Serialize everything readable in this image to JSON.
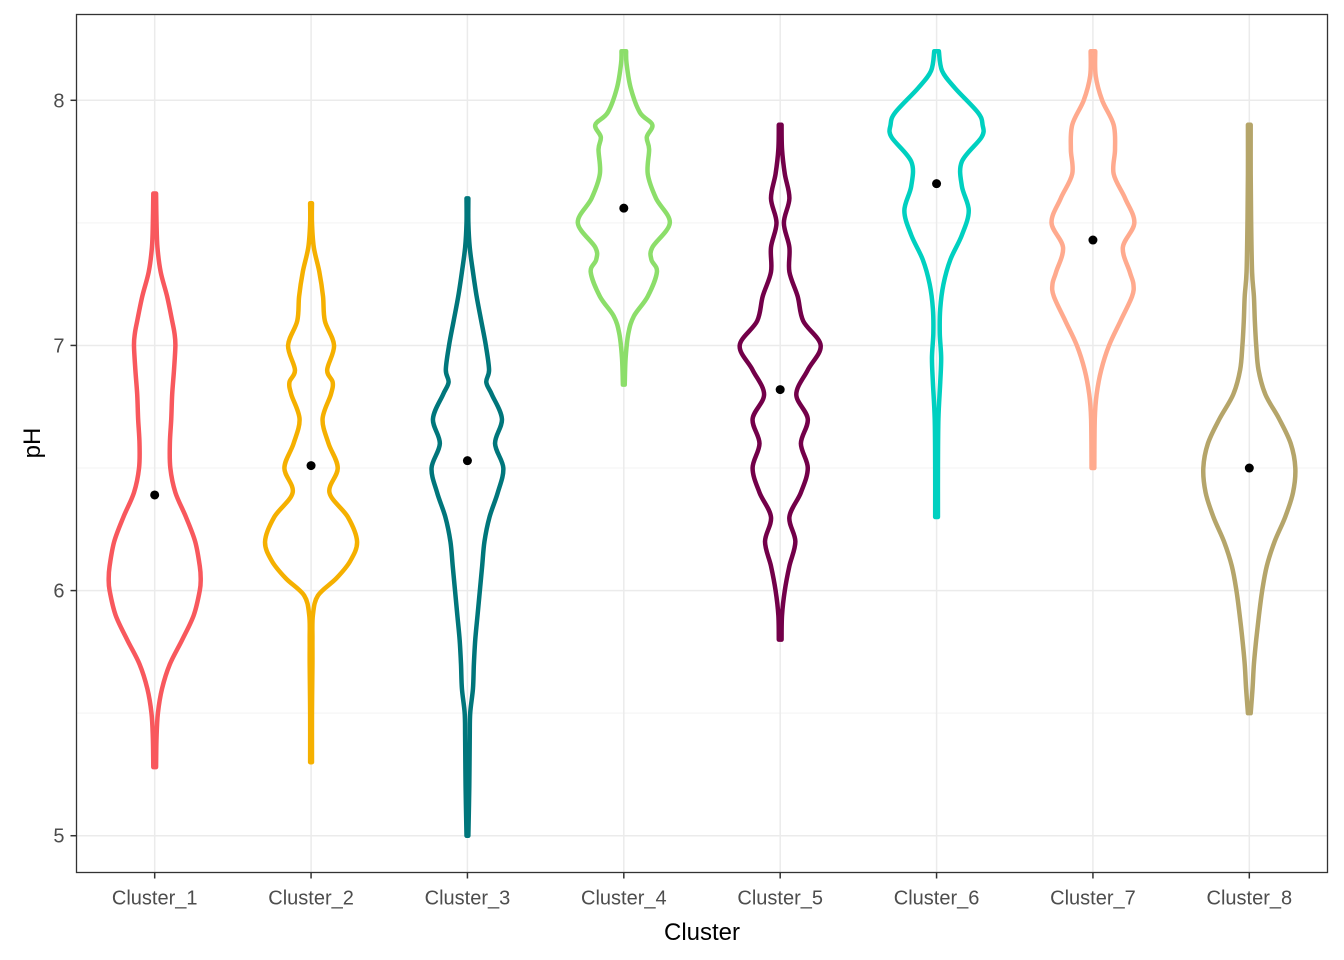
{
  "chart_data": {
    "type": "violin",
    "title": "",
    "xlabel": "Cluster",
    "ylabel": "pH",
    "ylim": [
      4.85,
      8.35
    ],
    "yticks": [
      "5",
      "6",
      "7",
      "8"
    ],
    "grid": true,
    "legend": "none",
    "categories": [
      "Cluster_1",
      "Cluster_2",
      "Cluster_3",
      "Cluster_4",
      "Cluster_5",
      "Cluster_6",
      "Cluster_7",
      "Cluster_8"
    ],
    "series": [
      {
        "category": "Cluster_1",
        "color": "#F8585D",
        "min": 5.28,
        "max": 7.62,
        "mean": 6.39,
        "density": [
          [
            5.28,
            0.03
          ],
          [
            5.4,
            0.04
          ],
          [
            5.5,
            0.07
          ],
          [
            5.6,
            0.16
          ],
          [
            5.7,
            0.33
          ],
          [
            5.8,
            0.6
          ],
          [
            5.9,
            0.85
          ],
          [
            6.0,
            0.98
          ],
          [
            6.05,
            1.0
          ],
          [
            6.1,
            0.98
          ],
          [
            6.2,
            0.88
          ],
          [
            6.3,
            0.68
          ],
          [
            6.4,
            0.45
          ],
          [
            6.5,
            0.34
          ],
          [
            6.6,
            0.33
          ],
          [
            6.7,
            0.36
          ],
          [
            6.8,
            0.38
          ],
          [
            6.9,
            0.42
          ],
          [
            7.0,
            0.45
          ],
          [
            7.05,
            0.43
          ],
          [
            7.1,
            0.38
          ],
          [
            7.2,
            0.27
          ],
          [
            7.3,
            0.13
          ],
          [
            7.4,
            0.06
          ],
          [
            7.5,
            0.04
          ],
          [
            7.62,
            0.03
          ]
        ]
      },
      {
        "category": "Cluster_2",
        "color": "#F5B000",
        "min": 5.3,
        "max": 7.58,
        "mean": 6.51,
        "density": [
          [
            5.3,
            0.02
          ],
          [
            5.5,
            0.02
          ],
          [
            5.7,
            0.03
          ],
          [
            5.8,
            0.03
          ],
          [
            5.9,
            0.04
          ],
          [
            5.98,
            0.15
          ],
          [
            6.05,
            0.55
          ],
          [
            6.12,
            0.85
          ],
          [
            6.2,
            1.0
          ],
          [
            6.3,
            0.8
          ],
          [
            6.4,
            0.4
          ],
          [
            6.5,
            0.58
          ],
          [
            6.6,
            0.38
          ],
          [
            6.7,
            0.25
          ],
          [
            6.8,
            0.43
          ],
          [
            6.85,
            0.47
          ],
          [
            6.9,
            0.35
          ],
          [
            7.0,
            0.5
          ],
          [
            7.1,
            0.3
          ],
          [
            7.2,
            0.26
          ],
          [
            7.3,
            0.18
          ],
          [
            7.4,
            0.06
          ],
          [
            7.5,
            0.02
          ],
          [
            7.58,
            0.02
          ]
        ]
      },
      {
        "category": "Cluster_3",
        "color": "#00767B",
        "min": 5.0,
        "max": 7.6,
        "mean": 6.53,
        "density": [
          [
            5.0,
            0.02
          ],
          [
            5.2,
            0.04
          ],
          [
            5.4,
            0.05
          ],
          [
            5.5,
            0.06
          ],
          [
            5.6,
            0.12
          ],
          [
            5.7,
            0.14
          ],
          [
            5.8,
            0.17
          ],
          [
            5.9,
            0.22
          ],
          [
            6.0,
            0.27
          ],
          [
            6.1,
            0.32
          ],
          [
            6.2,
            0.37
          ],
          [
            6.3,
            0.48
          ],
          [
            6.4,
            0.66
          ],
          [
            6.5,
            0.78
          ],
          [
            6.6,
            0.6
          ],
          [
            6.7,
            0.75
          ],
          [
            6.8,
            0.53
          ],
          [
            6.85,
            0.41
          ],
          [
            6.9,
            0.47
          ],
          [
            7.0,
            0.4
          ],
          [
            7.1,
            0.3
          ],
          [
            7.2,
            0.2
          ],
          [
            7.3,
            0.12
          ],
          [
            7.4,
            0.05
          ],
          [
            7.5,
            0.02
          ],
          [
            7.6,
            0.02
          ]
        ]
      },
      {
        "category": "Cluster_4",
        "color": "#8CDE6A",
        "min": 6.84,
        "max": 8.2,
        "mean": 7.56,
        "density": [
          [
            6.84,
            0.02
          ],
          [
            6.95,
            0.04
          ],
          [
            7.05,
            0.1
          ],
          [
            7.12,
            0.22
          ],
          [
            7.2,
            0.52
          ],
          [
            7.3,
            0.72
          ],
          [
            7.35,
            0.6
          ],
          [
            7.4,
            0.62
          ],
          [
            7.5,
            1.0
          ],
          [
            7.6,
            0.7
          ],
          [
            7.7,
            0.52
          ],
          [
            7.8,
            0.55
          ],
          [
            7.85,
            0.5
          ],
          [
            7.9,
            0.62
          ],
          [
            7.95,
            0.35
          ],
          [
            8.05,
            0.15
          ],
          [
            8.15,
            0.06
          ],
          [
            8.2,
            0.05
          ]
        ]
      },
      {
        "category": "Cluster_5",
        "color": "#730049",
        "min": 5.8,
        "max": 7.9,
        "mean": 6.82,
        "density": [
          [
            5.8,
            0.03
          ],
          [
            5.9,
            0.04
          ],
          [
            6.0,
            0.1
          ],
          [
            6.1,
            0.2
          ],
          [
            6.2,
            0.33
          ],
          [
            6.3,
            0.2
          ],
          [
            6.4,
            0.45
          ],
          [
            6.5,
            0.6
          ],
          [
            6.6,
            0.45
          ],
          [
            6.7,
            0.6
          ],
          [
            6.8,
            0.35
          ],
          [
            6.9,
            0.6
          ],
          [
            7.0,
            0.88
          ],
          [
            7.1,
            0.5
          ],
          [
            7.2,
            0.38
          ],
          [
            7.3,
            0.2
          ],
          [
            7.4,
            0.2
          ],
          [
            7.5,
            0.08
          ],
          [
            7.6,
            0.2
          ],
          [
            7.7,
            0.1
          ],
          [
            7.8,
            0.04
          ],
          [
            7.9,
            0.03
          ]
        ]
      },
      {
        "category": "Cluster_6",
        "color": "#00D0C0",
        "min": 6.3,
        "max": 8.2,
        "mean": 7.66,
        "density": [
          [
            6.3,
            0.03
          ],
          [
            6.5,
            0.03
          ],
          [
            6.7,
            0.04
          ],
          [
            6.85,
            0.08
          ],
          [
            6.95,
            0.1
          ],
          [
            7.05,
            0.07
          ],
          [
            7.15,
            0.08
          ],
          [
            7.25,
            0.15
          ],
          [
            7.35,
            0.3
          ],
          [
            7.45,
            0.55
          ],
          [
            7.55,
            0.7
          ],
          [
            7.65,
            0.55
          ],
          [
            7.75,
            0.55
          ],
          [
            7.85,
            0.98
          ],
          [
            7.9,
            1.0
          ],
          [
            7.95,
            0.9
          ],
          [
            8.05,
            0.4
          ],
          [
            8.12,
            0.12
          ],
          [
            8.2,
            0.05
          ]
        ]
      },
      {
        "category": "Cluster_7",
        "color": "#FFAA8E",
        "min": 6.5,
        "max": 8.2,
        "mean": 7.43,
        "density": [
          [
            6.5,
            0.03
          ],
          [
            6.7,
            0.04
          ],
          [
            6.8,
            0.08
          ],
          [
            6.9,
            0.18
          ],
          [
            7.0,
            0.35
          ],
          [
            7.1,
            0.6
          ],
          [
            7.2,
            0.85
          ],
          [
            7.25,
            0.88
          ],
          [
            7.3,
            0.8
          ],
          [
            7.4,
            0.65
          ],
          [
            7.5,
            0.9
          ],
          [
            7.6,
            0.7
          ],
          [
            7.7,
            0.45
          ],
          [
            7.8,
            0.48
          ],
          [
            7.9,
            0.45
          ],
          [
            8.0,
            0.2
          ],
          [
            8.1,
            0.06
          ],
          [
            8.2,
            0.05
          ]
        ]
      },
      {
        "category": "Cluster_8",
        "color": "#B5A56A",
        "min": 5.5,
        "max": 7.9,
        "mean": 6.5,
        "density": [
          [
            5.5,
            0.03
          ],
          [
            5.6,
            0.07
          ],
          [
            5.7,
            0.1
          ],
          [
            5.8,
            0.15
          ],
          [
            5.9,
            0.21
          ],
          [
            6.0,
            0.28
          ],
          [
            6.1,
            0.38
          ],
          [
            6.2,
            0.55
          ],
          [
            6.3,
            0.78
          ],
          [
            6.4,
            0.95
          ],
          [
            6.5,
            1.0
          ],
          [
            6.6,
            0.9
          ],
          [
            6.7,
            0.65
          ],
          [
            6.8,
            0.35
          ],
          [
            6.9,
            0.2
          ],
          [
            7.0,
            0.15
          ],
          [
            7.1,
            0.12
          ],
          [
            7.2,
            0.1
          ],
          [
            7.3,
            0.06
          ],
          [
            7.5,
            0.04
          ],
          [
            7.7,
            0.03
          ],
          [
            7.9,
            0.03
          ]
        ]
      }
    ]
  }
}
